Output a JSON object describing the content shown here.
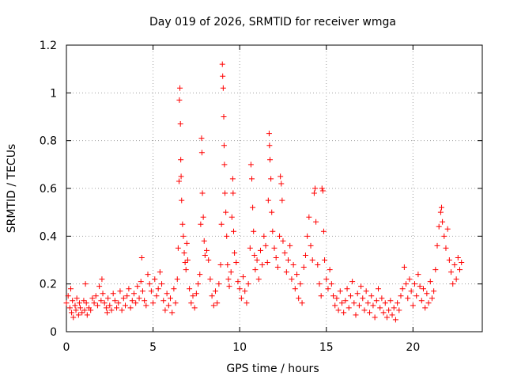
{
  "chart_data": {
    "type": "scatter",
    "title": "Day 019 of 2026, SRMTID for receiver wmga",
    "xlabel": "GPS time / hours",
    "ylabel": "SRMTID / TECUs",
    "xlim": [
      0,
      24
    ],
    "ylim": [
      0,
      1.2
    ],
    "xticks": [
      0,
      5,
      10,
      15,
      20
    ],
    "xtick_labels": [
      "0",
      "5",
      "10",
      "15",
      "20"
    ],
    "yticks": [
      0,
      0.2,
      0.4,
      0.6,
      0.8,
      1.0,
      1.2
    ],
    "ytick_labels": [
      "0",
      "0.2",
      "0.4",
      "0.6",
      "0.8",
      "1",
      "1.2"
    ],
    "grid": true,
    "marker": "plus",
    "series": [
      {
        "name": "wmga",
        "color": "#ff0000",
        "points": [
          [
            0.0,
            0.12
          ],
          [
            0.1,
            0.15
          ],
          [
            0.2,
            0.1
          ],
          [
            0.25,
            0.18
          ],
          [
            0.3,
            0.08
          ],
          [
            0.35,
            0.13
          ],
          [
            0.4,
            0.06
          ],
          [
            0.5,
            0.11
          ],
          [
            0.55,
            0.09
          ],
          [
            0.6,
            0.14
          ],
          [
            0.7,
            0.07
          ],
          [
            0.75,
            0.12
          ],
          [
            0.8,
            0.1
          ],
          [
            0.9,
            0.08
          ],
          [
            1.0,
            0.13
          ],
          [
            1.05,
            0.09
          ],
          [
            1.1,
            0.2
          ],
          [
            1.15,
            0.12
          ],
          [
            1.2,
            0.07
          ],
          [
            1.3,
            0.1
          ],
          [
            1.4,
            0.09
          ],
          [
            1.5,
            0.14
          ],
          [
            1.6,
            0.12
          ],
          [
            1.7,
            0.15
          ],
          [
            1.8,
            0.11
          ],
          [
            1.9,
            0.19
          ],
          [
            2.0,
            0.13
          ],
          [
            2.05,
            0.22
          ],
          [
            2.1,
            0.16
          ],
          [
            2.2,
            0.12
          ],
          [
            2.3,
            0.1
          ],
          [
            2.35,
            0.08
          ],
          [
            2.4,
            0.14
          ],
          [
            2.5,
            0.11
          ],
          [
            2.6,
            0.09
          ],
          [
            2.7,
            0.16
          ],
          [
            2.8,
            0.13
          ],
          [
            2.9,
            0.1
          ],
          [
            3.0,
            0.12
          ],
          [
            3.1,
            0.17
          ],
          [
            3.2,
            0.09
          ],
          [
            3.3,
            0.14
          ],
          [
            3.4,
            0.11
          ],
          [
            3.5,
            0.15
          ],
          [
            3.6,
            0.18
          ],
          [
            3.7,
            0.1
          ],
          [
            3.8,
            0.13
          ],
          [
            3.9,
            0.16
          ],
          [
            4.0,
            0.12
          ],
          [
            4.1,
            0.19
          ],
          [
            4.2,
            0.14
          ],
          [
            4.3,
            0.21
          ],
          [
            4.35,
            0.31
          ],
          [
            4.4,
            0.17
          ],
          [
            4.5,
            0.13
          ],
          [
            4.6,
            0.11
          ],
          [
            4.7,
            0.24
          ],
          [
            4.8,
            0.2
          ],
          [
            4.9,
            0.17
          ],
          [
            5.0,
            0.12
          ],
          [
            5.1,
            0.22
          ],
          [
            5.2,
            0.15
          ],
          [
            5.3,
            0.18
          ],
          [
            5.4,
            0.25
          ],
          [
            5.5,
            0.2
          ],
          [
            5.6,
            0.13
          ],
          [
            5.7,
            0.09
          ],
          [
            5.8,
            0.16
          ],
          [
            5.9,
            0.11
          ],
          [
            6.0,
            0.14
          ],
          [
            6.1,
            0.08
          ],
          [
            6.2,
            0.18
          ],
          [
            6.3,
            0.12
          ],
          [
            6.4,
            0.22
          ],
          [
            6.45,
            0.35
          ],
          [
            6.5,
            0.63
          ],
          [
            6.52,
            0.97
          ],
          [
            6.55,
            1.02
          ],
          [
            6.58,
            0.87
          ],
          [
            6.6,
            0.72
          ],
          [
            6.62,
            0.65
          ],
          [
            6.65,
            0.55
          ],
          [
            6.7,
            0.45
          ],
          [
            6.75,
            0.4
          ],
          [
            6.8,
            0.33
          ],
          [
            6.85,
            0.29
          ],
          [
            6.9,
            0.26
          ],
          [
            6.95,
            0.37
          ],
          [
            7.0,
            0.3
          ],
          [
            7.1,
            0.18
          ],
          [
            7.2,
            0.12
          ],
          [
            7.3,
            0.15
          ],
          [
            7.4,
            0.1
          ],
          [
            7.5,
            0.16
          ],
          [
            7.6,
            0.2
          ],
          [
            7.7,
            0.24
          ],
          [
            7.75,
            0.45
          ],
          [
            7.8,
            0.81
          ],
          [
            7.82,
            0.75
          ],
          [
            7.85,
            0.58
          ],
          [
            7.9,
            0.48
          ],
          [
            7.95,
            0.38
          ],
          [
            8.0,
            0.32
          ],
          [
            8.1,
            0.34
          ],
          [
            8.2,
            0.3
          ],
          [
            8.3,
            0.22
          ],
          [
            8.4,
            0.15
          ],
          [
            8.5,
            0.11
          ],
          [
            8.6,
            0.17
          ],
          [
            8.7,
            0.12
          ],
          [
            8.8,
            0.2
          ],
          [
            8.9,
            0.28
          ],
          [
            8.95,
            0.45
          ],
          [
            9.0,
            1.12
          ],
          [
            9.02,
            1.07
          ],
          [
            9.05,
            1.02
          ],
          [
            9.08,
            0.9
          ],
          [
            9.1,
            0.78
          ],
          [
            9.12,
            0.7
          ],
          [
            9.15,
            0.58
          ],
          [
            9.2,
            0.5
          ],
          [
            9.25,
            0.4
          ],
          [
            9.3,
            0.28
          ],
          [
            9.35,
            0.22
          ],
          [
            9.4,
            0.19
          ],
          [
            9.5,
            0.25
          ],
          [
            9.55,
            0.48
          ],
          [
            9.6,
            0.64
          ],
          [
            9.62,
            0.58
          ],
          [
            9.65,
            0.42
          ],
          [
            9.7,
            0.33
          ],
          [
            9.8,
            0.29
          ],
          [
            9.9,
            0.21
          ],
          [
            10.0,
            0.18
          ],
          [
            10.1,
            0.14
          ],
          [
            10.2,
            0.23
          ],
          [
            10.3,
            0.17
          ],
          [
            10.4,
            0.12
          ],
          [
            10.5,
            0.2
          ],
          [
            10.6,
            0.35
          ],
          [
            10.65,
            0.7
          ],
          [
            10.7,
            0.64
          ],
          [
            10.75,
            0.52
          ],
          [
            10.8,
            0.42
          ],
          [
            10.85,
            0.32
          ],
          [
            10.9,
            0.26
          ],
          [
            11.0,
            0.3
          ],
          [
            11.1,
            0.22
          ],
          [
            11.2,
            0.34
          ],
          [
            11.3,
            0.28
          ],
          [
            11.4,
            0.4
          ],
          [
            11.5,
            0.36
          ],
          [
            11.6,
            0.29
          ],
          [
            11.65,
            0.55
          ],
          [
            11.7,
            0.83
          ],
          [
            11.72,
            0.78
          ],
          [
            11.75,
            0.72
          ],
          [
            11.8,
            0.64
          ],
          [
            11.85,
            0.5
          ],
          [
            11.9,
            0.42
          ],
          [
            12.0,
            0.35
          ],
          [
            12.1,
            0.31
          ],
          [
            12.2,
            0.27
          ],
          [
            12.3,
            0.4
          ],
          [
            12.35,
            0.65
          ],
          [
            12.4,
            0.62
          ],
          [
            12.45,
            0.55
          ],
          [
            12.5,
            0.38
          ],
          [
            12.6,
            0.33
          ],
          [
            12.7,
            0.25
          ],
          [
            12.8,
            0.3
          ],
          [
            12.9,
            0.36
          ],
          [
            13.0,
            0.22
          ],
          [
            13.1,
            0.28
          ],
          [
            13.2,
            0.18
          ],
          [
            13.3,
            0.24
          ],
          [
            13.4,
            0.14
          ],
          [
            13.5,
            0.2
          ],
          [
            13.6,
            0.12
          ],
          [
            13.7,
            0.27
          ],
          [
            13.8,
            0.32
          ],
          [
            13.9,
            0.4
          ],
          [
            14.0,
            0.48
          ],
          [
            14.1,
            0.36
          ],
          [
            14.2,
            0.3
          ],
          [
            14.3,
            0.58
          ],
          [
            14.35,
            0.6
          ],
          [
            14.4,
            0.46
          ],
          [
            14.5,
            0.28
          ],
          [
            14.6,
            0.2
          ],
          [
            14.7,
            0.15
          ],
          [
            14.75,
            0.6
          ],
          [
            14.8,
            0.59
          ],
          [
            14.85,
            0.42
          ],
          [
            14.9,
            0.3
          ],
          [
            15.0,
            0.22
          ],
          [
            15.1,
            0.18
          ],
          [
            15.2,
            0.26
          ],
          [
            15.3,
            0.2
          ],
          [
            15.4,
            0.15
          ],
          [
            15.5,
            0.11
          ],
          [
            15.6,
            0.14
          ],
          [
            15.7,
            0.09
          ],
          [
            15.8,
            0.17
          ],
          [
            15.9,
            0.12
          ],
          [
            16.0,
            0.08
          ],
          [
            16.1,
            0.13
          ],
          [
            16.2,
            0.18
          ],
          [
            16.3,
            0.1
          ],
          [
            16.4,
            0.15
          ],
          [
            16.5,
            0.21
          ],
          [
            16.6,
            0.12
          ],
          [
            16.7,
            0.07
          ],
          [
            16.8,
            0.16
          ],
          [
            16.9,
            0.11
          ],
          [
            17.0,
            0.19
          ],
          [
            17.1,
            0.14
          ],
          [
            17.2,
            0.09
          ],
          [
            17.3,
            0.17
          ],
          [
            17.4,
            0.12
          ],
          [
            17.5,
            0.08
          ],
          [
            17.6,
            0.15
          ],
          [
            17.7,
            0.11
          ],
          [
            17.8,
            0.06
          ],
          [
            17.9,
            0.13
          ],
          [
            18.0,
            0.18
          ],
          [
            18.1,
            0.1
          ],
          [
            18.2,
            0.14
          ],
          [
            18.3,
            0.08
          ],
          [
            18.4,
            0.12
          ],
          [
            18.5,
            0.06
          ],
          [
            18.6,
            0.09
          ],
          [
            18.7,
            0.13
          ],
          [
            18.8,
            0.07
          ],
          [
            18.9,
            0.1
          ],
          [
            19.0,
            0.05
          ],
          [
            19.1,
            0.12
          ],
          [
            19.2,
            0.09
          ],
          [
            19.3,
            0.15
          ],
          [
            19.4,
            0.18
          ],
          [
            19.5,
            0.27
          ],
          [
            19.6,
            0.2
          ],
          [
            19.7,
            0.14
          ],
          [
            19.8,
            0.22
          ],
          [
            19.9,
            0.17
          ],
          [
            20.0,
            0.11
          ],
          [
            20.1,
            0.2
          ],
          [
            20.2,
            0.15
          ],
          [
            20.3,
            0.24
          ],
          [
            20.4,
            0.19
          ],
          [
            20.5,
            0.13
          ],
          [
            20.6,
            0.18
          ],
          [
            20.7,
            0.1
          ],
          [
            20.8,
            0.16
          ],
          [
            20.9,
            0.12
          ],
          [
            21.0,
            0.21
          ],
          [
            21.1,
            0.14
          ],
          [
            21.2,
            0.17
          ],
          [
            21.3,
            0.26
          ],
          [
            21.4,
            0.36
          ],
          [
            21.5,
            0.44
          ],
          [
            21.6,
            0.5
          ],
          [
            21.65,
            0.52
          ],
          [
            21.7,
            0.46
          ],
          [
            21.8,
            0.4
          ],
          [
            21.9,
            0.35
          ],
          [
            22.0,
            0.43
          ],
          [
            22.1,
            0.3
          ],
          [
            22.2,
            0.25
          ],
          [
            22.3,
            0.2
          ],
          [
            22.4,
            0.28
          ],
          [
            22.5,
            0.22
          ],
          [
            22.6,
            0.31
          ],
          [
            22.7,
            0.26
          ],
          [
            22.8,
            0.29
          ]
        ]
      }
    ]
  }
}
